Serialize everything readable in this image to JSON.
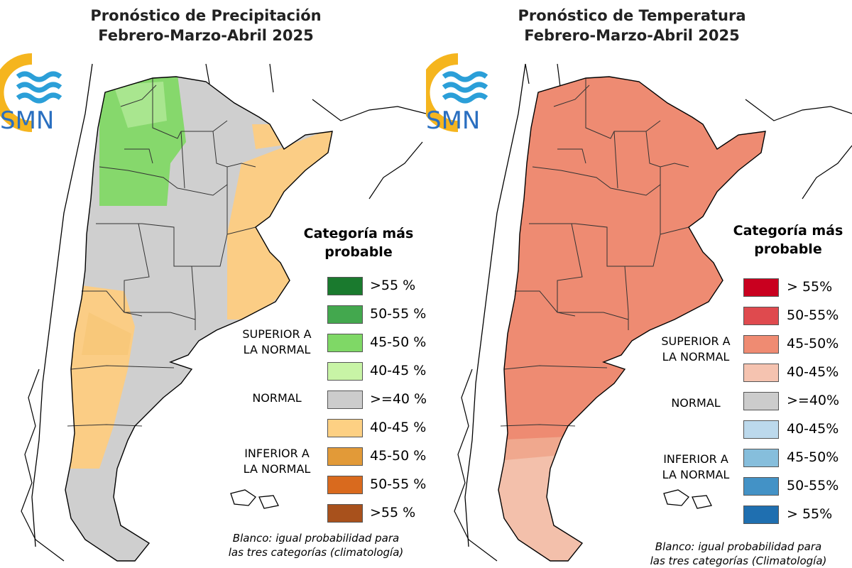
{
  "left": {
    "title_line1": "Pronóstico de Precipitación",
    "title_line2": "Febrero-Marzo-Abril 2025",
    "legend_title_line1": "Categoría más",
    "legend_title_line2": "probable",
    "legend": [
      {
        "label": ">55 %",
        "color": "#1a7a2e"
      },
      {
        "label": "50-55 %",
        "color": "#43a84e"
      },
      {
        "label": "45-50 %",
        "color": "#7fd866"
      },
      {
        "label": "40-45 %",
        "color": "#c8f4a6"
      },
      {
        "label": ">=40 %",
        "color": "#cccccc"
      },
      {
        "label": "40-45 %",
        "color": "#fdd083"
      },
      {
        "label": "45-50 %",
        "color": "#e29a38"
      },
      {
        "label": "50-55 %",
        "color": "#d96a1e"
      },
      {
        "label": ">55 %",
        "color": "#a8511c"
      }
    ],
    "cat_superior_1": "SUPERIOR A",
    "cat_superior_2": "LA NORMAL",
    "cat_normal": "NORMAL",
    "cat_inferior_1": "INFERIOR A",
    "cat_inferior_2": "LA NORMAL",
    "note_line1": "Blanco: igual probabilidad para",
    "note_line2": "las tres categorías (climatología)"
  },
  "right": {
    "title_line1": "Pronóstico de Temperatura",
    "title_line2": "Febrero-Marzo-Abril 2025",
    "legend_title_line1": "Categoría más",
    "legend_title_line2": "probable",
    "legend": [
      {
        "label": "> 55%",
        "color": "#c9001f"
      },
      {
        "label": "50-55%",
        "color": "#df4a4e"
      },
      {
        "label": "45-50%",
        "color": "#ef8b72"
      },
      {
        "label": "40-45%",
        "color": "#f5c3b0"
      },
      {
        "label": ">=40%",
        "color": "#cccccc"
      },
      {
        "label": "40-45%",
        "color": "#bcd9ec"
      },
      {
        "label": "45-50%",
        "color": "#86bedc"
      },
      {
        "label": "50-55%",
        "color": "#4392c6"
      },
      {
        "label": "> 55%",
        "color": "#1f6fb0"
      }
    ],
    "cat_superior_1": "SUPERIOR A",
    "cat_superior_2": "LA NORMAL",
    "cat_normal": "NORMAL",
    "cat_inferior_1": "INFERIOR A",
    "cat_inferior_2": "LA NORMAL",
    "note_line1": "Blanco: igual probabilidad para",
    "note_line2": "las tres categorías (Climatología)"
  },
  "logo_text": "SMN",
  "colors": {
    "logo_yellow": "#f5b51e",
    "logo_blue": "#2b9fd8",
    "map_gray": "#cfcfcf",
    "map_green": "#86d86c",
    "map_orange": "#fbcd85",
    "map_salmon": "#ee8b72",
    "map_pale_salmon": "#f3c0ab"
  }
}
